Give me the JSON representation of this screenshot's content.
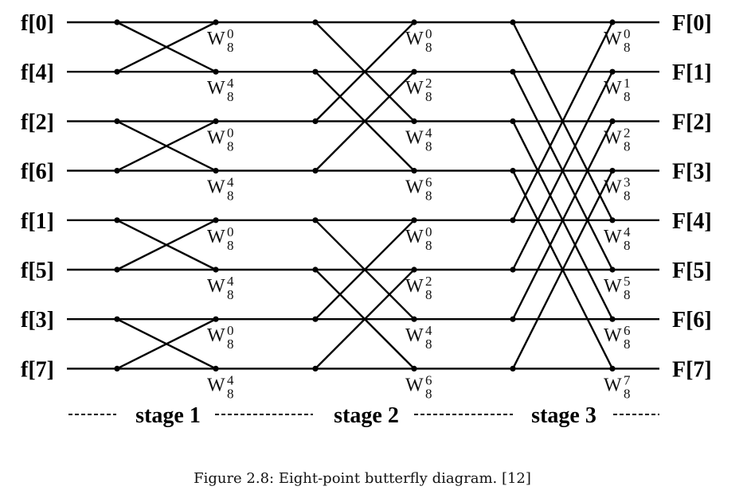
{
  "inputs": [
    "f[0]",
    "f[4]",
    "f[2]",
    "f[6]",
    "f[1]",
    "f[5]",
    "f[3]",
    "f[7]"
  ],
  "outputs": [
    "F[0]",
    "F[1]",
    "F[2]",
    "F[3]",
    "F[4]",
    "F[5]",
    "F[6]",
    "F[7]"
  ],
  "twiddle_base": "W",
  "twiddle_sub": "8",
  "stages": [
    {
      "label": "stage 1",
      "group_size": 2,
      "exponents": [
        "0",
        "4",
        "0",
        "4",
        "0",
        "4",
        "0",
        "4"
      ]
    },
    {
      "label": "stage 2",
      "group_size": 4,
      "exponents": [
        "0",
        "2",
        "4",
        "6",
        "0",
        "2",
        "4",
        "6"
      ]
    },
    {
      "label": "stage 3",
      "group_size": 8,
      "exponents": [
        "0",
        "1",
        "2",
        "3",
        "4",
        "5",
        "6",
        "7"
      ]
    }
  ],
  "caption": "Figure 2.8: Eight-point butterfly diagram. [12]"
}
